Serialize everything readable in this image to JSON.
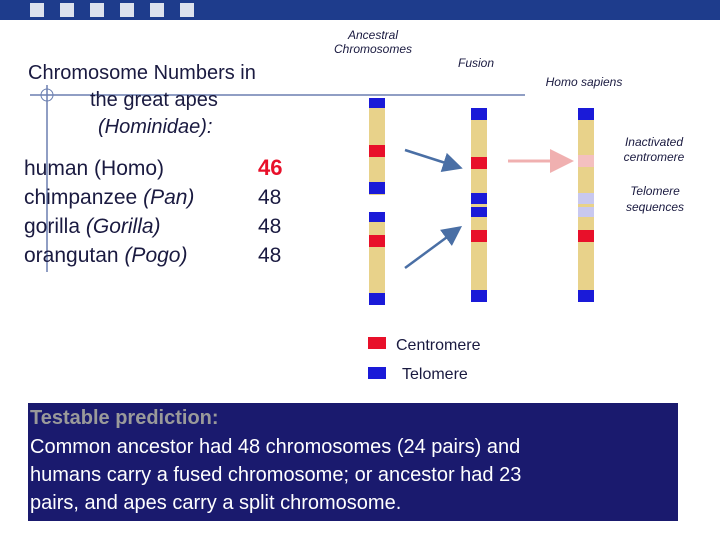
{
  "title": {
    "line1": "Chromosome Numbers in",
    "line2": "the great apes",
    "line3": "(Hominidae):"
  },
  "species": [
    {
      "name": "human (Homo)",
      "genus": "",
      "count": "46"
    },
    {
      "name": "chimpanzee",
      "genus": "(Pan)",
      "count": "48"
    },
    {
      "name": "gorilla",
      "genus": "(Gorilla)",
      "count": "48"
    },
    {
      "name": "orangutan",
      "genus": "(Pogo)",
      "count": "48"
    }
  ],
  "diagram": {
    "ancestral": [
      "Ancestral",
      "Chromosomes"
    ],
    "fusion": "Fusion",
    "homo_sapiens": "Homo sapiens",
    "inactivated": [
      "Inactivated",
      "centromere"
    ],
    "telomere_seq": [
      "Telomere",
      "sequences"
    ]
  },
  "legend": {
    "centromere": "Centromere",
    "telomere": "Telomere"
  },
  "prediction": {
    "heading": "Testable prediction:",
    "lines": [
      "Common ancestor had 48 chromosomes (24 pairs) and",
      "humans carry a fused chromosome; or ancestor had 23",
      "pairs, and apes carry a split chromosome."
    ]
  }
}
